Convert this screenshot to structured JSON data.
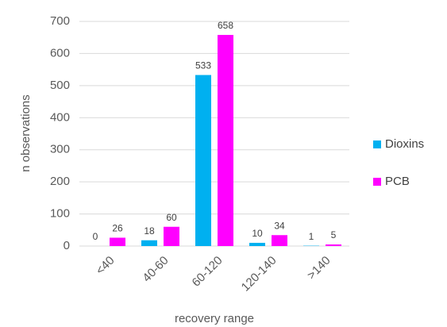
{
  "chart_data": {
    "type": "bar",
    "x_label": "recovery range",
    "y_label": "n observations",
    "categories": [
      "<40",
      "40-60",
      "60-120",
      "120-140",
      ">140"
    ],
    "series": [
      {
        "name": "Dioxins",
        "color": "#00b0f0",
        "values": [
          0,
          18,
          533,
          10,
          1
        ]
      },
      {
        "name": "PCB",
        "color": "#ff00ff",
        "values": [
          26,
          60,
          658,
          34,
          5
        ]
      }
    ],
    "ylim": [
      0,
      700
    ],
    "yticks": [
      0,
      100,
      200,
      300,
      400,
      500,
      600,
      700
    ],
    "grid": true,
    "legend": "right"
  }
}
